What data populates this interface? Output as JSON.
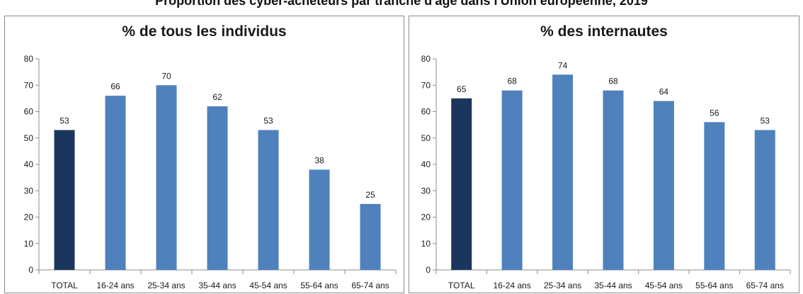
{
  "page": {
    "title": "Proportion des cyber-acheteurs par tranche d'âge dans l'Union européenne, 2019"
  },
  "colors": {
    "total_bar": "#1b365d",
    "age_bar": "#4f81bd",
    "axis": "#8c8c8c",
    "text": "#1a1a1a"
  },
  "chart_data": [
    {
      "type": "bar",
      "title": "% de tous les individus",
      "categories": [
        "TOTAL",
        "16-24 ans",
        "25-34 ans",
        "35-44 ans",
        "45-54 ans",
        "55-64 ans",
        "65-74 ans"
      ],
      "values": [
        53,
        66,
        70,
        62,
        53,
        38,
        25
      ],
      "data_labels": [
        "53",
        "66",
        "70",
        "62",
        "53",
        "38",
        "25"
      ],
      "yticks": [
        "0",
        "10",
        "20",
        "30",
        "40",
        "50",
        "60",
        "70",
        "80"
      ],
      "ylim": [
        0,
        80
      ],
      "xlabel": "",
      "ylabel": "",
      "grid": false,
      "legend": "none"
    },
    {
      "type": "bar",
      "title": "% des internautes",
      "categories": [
        "TOTAL",
        "16-24 ans",
        "25-34 ans",
        "35-44 ans",
        "45-54 ans",
        "55-64 ans",
        "65-74 ans"
      ],
      "values": [
        65,
        68,
        74,
        68,
        64,
        56,
        53
      ],
      "data_labels": [
        "65",
        "68",
        "74",
        "68",
        "64",
        "56",
        "53"
      ],
      "yticks": [
        "0",
        "10",
        "20",
        "30",
        "40",
        "50",
        "60",
        "70",
        "80"
      ],
      "ylim": [
        0,
        80
      ],
      "xlabel": "",
      "ylabel": "",
      "grid": false,
      "legend": "none"
    }
  ]
}
